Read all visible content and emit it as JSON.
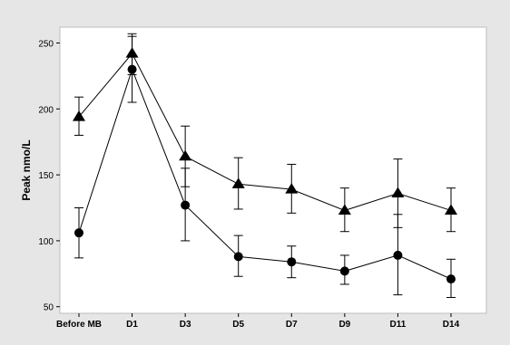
{
  "chart_data": {
    "type": "line",
    "ylabel": "Peak  nmo/L",
    "xlabel": "",
    "categories": [
      "Before MB",
      "D1",
      "D3",
      "D5",
      "D7",
      "D9",
      "D11",
      "D14"
    ],
    "ylim": [
      45,
      262
    ],
    "yticks": [
      50,
      100,
      150,
      200,
      250
    ],
    "grid": false,
    "series": [
      {
        "marker": "circle",
        "x": [
          "Before MB",
          "D1",
          "D3",
          "D5",
          "D7",
          "D9",
          "D11",
          "D14"
        ],
        "values": [
          106,
          230,
          127,
          88,
          84,
          77,
          89,
          71
        ],
        "err_low": [
          87,
          205,
          100,
          73,
          72,
          67,
          59,
          57
        ],
        "err_high": [
          125,
          255,
          155,
          104,
          96,
          89,
          120,
          86
        ]
      },
      {
        "marker": "triangle",
        "x": [
          "Before MB",
          "D1",
          "D3",
          "D5",
          "D7",
          "D9",
          "D11",
          "D14"
        ],
        "values": [
          194,
          242,
          164,
          143,
          139,
          123,
          136,
          123
        ],
        "err_low": [
          180,
          226,
          141,
          124,
          121,
          107,
          110,
          107
        ],
        "err_high": [
          209,
          257,
          187,
          163,
          158,
          140,
          162,
          140
        ]
      }
    ],
    "colors": {
      "background": "#e6e6e6",
      "plot_area": "#ffffff",
      "marks": "#000000"
    }
  }
}
